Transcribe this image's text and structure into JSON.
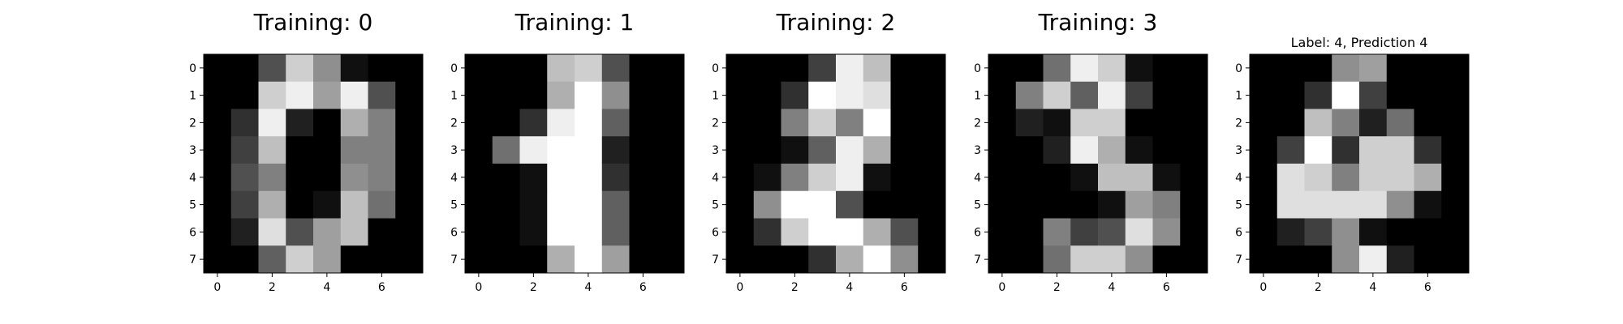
{
  "chart_data": [
    {
      "type": "heatmap",
      "title": "Training: 0",
      "colormap": "gray_r",
      "value_range": [
        0,
        16
      ],
      "x_ticks": [
        "0",
        "2",
        "4",
        "6"
      ],
      "y_ticks": [
        "0",
        "1",
        "2",
        "3",
        "4",
        "5",
        "6",
        "7"
      ],
      "grid": false,
      "values": [
        [
          0,
          0,
          5,
          13,
          9,
          1,
          0,
          0
        ],
        [
          0,
          0,
          13,
          15,
          10,
          15,
          5,
          0
        ],
        [
          0,
          3,
          15,
          2,
          0,
          11,
          8,
          0
        ],
        [
          0,
          4,
          12,
          0,
          0,
          8,
          8,
          0
        ],
        [
          0,
          5,
          8,
          0,
          0,
          9,
          8,
          0
        ],
        [
          0,
          4,
          11,
          0,
          1,
          12,
          7,
          0
        ],
        [
          0,
          2,
          14,
          5,
          10,
          12,
          0,
          0
        ],
        [
          0,
          0,
          6,
          13,
          10,
          0,
          0,
          0
        ]
      ]
    },
    {
      "type": "heatmap",
      "title": "Training: 1",
      "colormap": "gray_r",
      "value_range": [
        0,
        16
      ],
      "x_ticks": [
        "0",
        "2",
        "4",
        "6"
      ],
      "y_ticks": [
        "0",
        "1",
        "2",
        "3",
        "4",
        "5",
        "6",
        "7"
      ],
      "grid": false,
      "values": [
        [
          0,
          0,
          0,
          12,
          13,
          5,
          0,
          0
        ],
        [
          0,
          0,
          0,
          11,
          16,
          9,
          0,
          0
        ],
        [
          0,
          0,
          3,
          15,
          16,
          6,
          0,
          0
        ],
        [
          0,
          7,
          15,
          16,
          16,
          2,
          0,
          0
        ],
        [
          0,
          0,
          1,
          16,
          16,
          3,
          0,
          0
        ],
        [
          0,
          0,
          1,
          16,
          16,
          6,
          0,
          0
        ],
        [
          0,
          0,
          1,
          16,
          16,
          6,
          0,
          0
        ],
        [
          0,
          0,
          0,
          11,
          16,
          10,
          0,
          0
        ]
      ]
    },
    {
      "type": "heatmap",
      "title": "Training: 2",
      "colormap": "gray_r",
      "value_range": [
        0,
        16
      ],
      "x_ticks": [
        "0",
        "2",
        "4",
        "6"
      ],
      "y_ticks": [
        "0",
        "1",
        "2",
        "3",
        "4",
        "5",
        "6",
        "7"
      ],
      "grid": false,
      "values": [
        [
          0,
          0,
          0,
          4,
          15,
          12,
          0,
          0
        ],
        [
          0,
          0,
          3,
          16,
          15,
          14,
          0,
          0
        ],
        [
          0,
          0,
          8,
          13,
          8,
          16,
          0,
          0
        ],
        [
          0,
          0,
          1,
          6,
          15,
          11,
          0,
          0
        ],
        [
          0,
          1,
          8,
          13,
          15,
          1,
          0,
          0
        ],
        [
          0,
          9,
          16,
          16,
          5,
          0,
          0,
          0
        ],
        [
          0,
          3,
          13,
          16,
          16,
          11,
          5,
          0
        ],
        [
          0,
          0,
          0,
          3,
          11,
          16,
          9,
          0
        ]
      ]
    },
    {
      "type": "heatmap",
      "title": "Training: 3",
      "colormap": "gray_r",
      "value_range": [
        0,
        16
      ],
      "x_ticks": [
        "0",
        "2",
        "4",
        "6"
      ],
      "y_ticks": [
        "0",
        "1",
        "2",
        "3",
        "4",
        "5",
        "6",
        "7"
      ],
      "grid": false,
      "values": [
        [
          0,
          0,
          7,
          15,
          13,
          1,
          0,
          0
        ],
        [
          0,
          8,
          13,
          6,
          15,
          4,
          0,
          0
        ],
        [
          0,
          2,
          1,
          13,
          13,
          0,
          0,
          0
        ],
        [
          0,
          0,
          2,
          15,
          11,
          1,
          0,
          0
        ],
        [
          0,
          0,
          0,
          1,
          12,
          12,
          1,
          0
        ],
        [
          0,
          0,
          0,
          0,
          1,
          10,
          8,
          0
        ],
        [
          0,
          0,
          8,
          4,
          5,
          14,
          9,
          0
        ],
        [
          0,
          0,
          7,
          13,
          13,
          9,
          0,
          0
        ]
      ]
    },
    {
      "type": "heatmap",
      "title": "Label: 4, Prediction 4",
      "colormap": "gray_r",
      "value_range": [
        0,
        16
      ],
      "x_ticks": [
        "0",
        "2",
        "4",
        "6"
      ],
      "y_ticks": [
        "0",
        "1",
        "2",
        "3",
        "4",
        "5",
        "6",
        "7"
      ],
      "grid": false,
      "values": [
        [
          0,
          0,
          0,
          9,
          10,
          0,
          0,
          0
        ],
        [
          0,
          0,
          3,
          16,
          4,
          0,
          0,
          0
        ],
        [
          0,
          0,
          12,
          8,
          2,
          7,
          0,
          0
        ],
        [
          0,
          4,
          16,
          3,
          13,
          13,
          3,
          0
        ],
        [
          0,
          14,
          13,
          8,
          13,
          13,
          11,
          0
        ],
        [
          0,
          14,
          14,
          14,
          14,
          9,
          1,
          0
        ],
        [
          0,
          2,
          4,
          9,
          1,
          0,
          0,
          0
        ],
        [
          0,
          0,
          0,
          9,
          15,
          2,
          0,
          0
        ]
      ]
    }
  ]
}
